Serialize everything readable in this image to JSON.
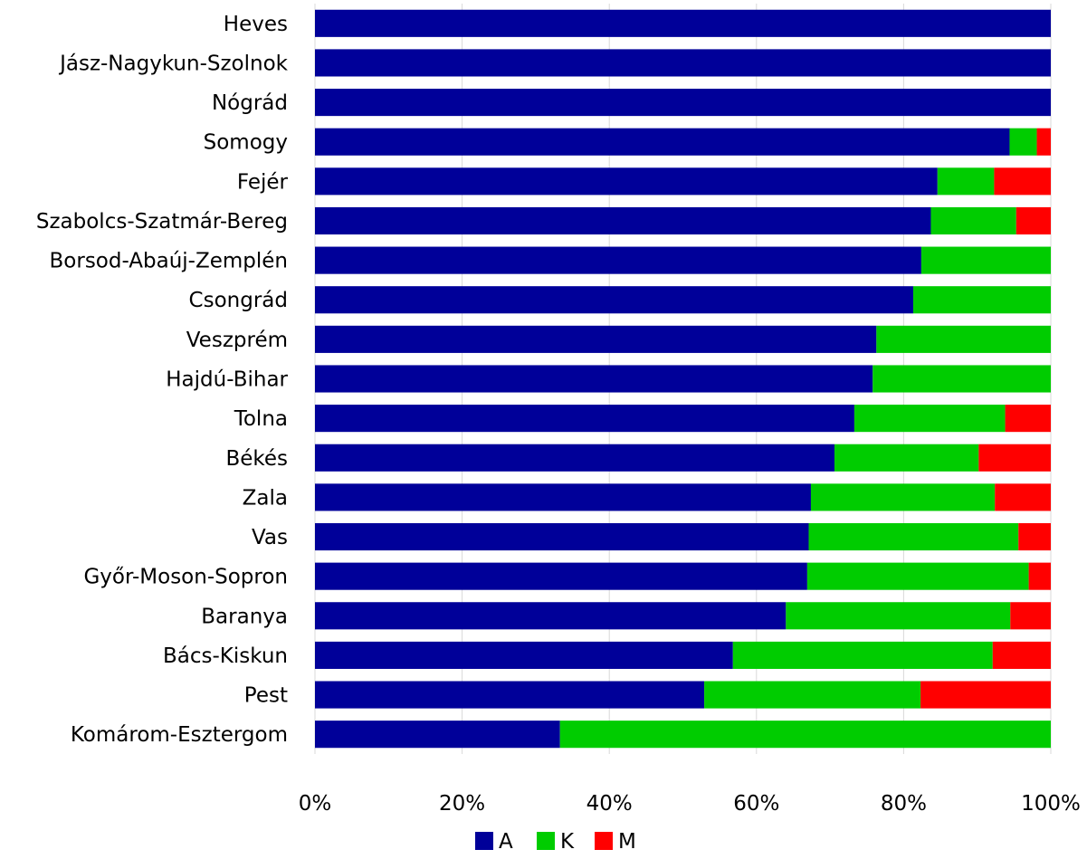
{
  "chart_data": {
    "type": "bar",
    "orientation": "horizontal",
    "stacked": "percent",
    "categories": [
      "Heves",
      "Jász-Nagykun-Szolnok",
      "Nógrád",
      "Somogy",
      "Fejér",
      "Szabolcs-Szatmár-Bereg",
      "Borsod-Abaúj-Zemplén",
      "Csongrád",
      "Veszprém",
      "Hajdú-Bihar",
      "Tolna",
      "Békés",
      "Zala",
      "Vas",
      "Győr-Moson-Sopron",
      "Baranya",
      "Bács-Kiskun",
      "Pest",
      "Komárom-Esztergom"
    ],
    "series": [
      {
        "name": "A",
        "color": "#000099",
        "values": [
          100,
          100,
          100,
          94.4,
          84.6,
          83.7,
          82.4,
          81.3,
          76.3,
          75.8,
          73.3,
          70.6,
          67.4,
          67.1,
          66.9,
          64.0,
          56.8,
          52.9,
          33.3
        ]
      },
      {
        "name": "K",
        "color": "#00CC00",
        "values": [
          0,
          0,
          0,
          3.7,
          7.7,
          11.6,
          17.6,
          18.7,
          23.7,
          24.2,
          20.5,
          19.6,
          25.0,
          28.5,
          30.1,
          30.5,
          35.3,
          29.4,
          66.7
        ]
      },
      {
        "name": "M",
        "color": "#FF0000",
        "values": [
          0,
          0,
          0,
          1.9,
          7.7,
          4.7,
          0,
          0,
          0,
          0,
          6.2,
          9.8,
          7.6,
          4.4,
          3.0,
          5.5,
          7.9,
          17.7,
          0
        ]
      }
    ],
    "xlim": [
      0,
      100
    ],
    "xticks": [
      "0%",
      "20%",
      "40%",
      "60%",
      "80%",
      "100%"
    ],
    "grid": "vertical",
    "legend": "bottom",
    "title": "",
    "xlabel": "",
    "ylabel": ""
  }
}
